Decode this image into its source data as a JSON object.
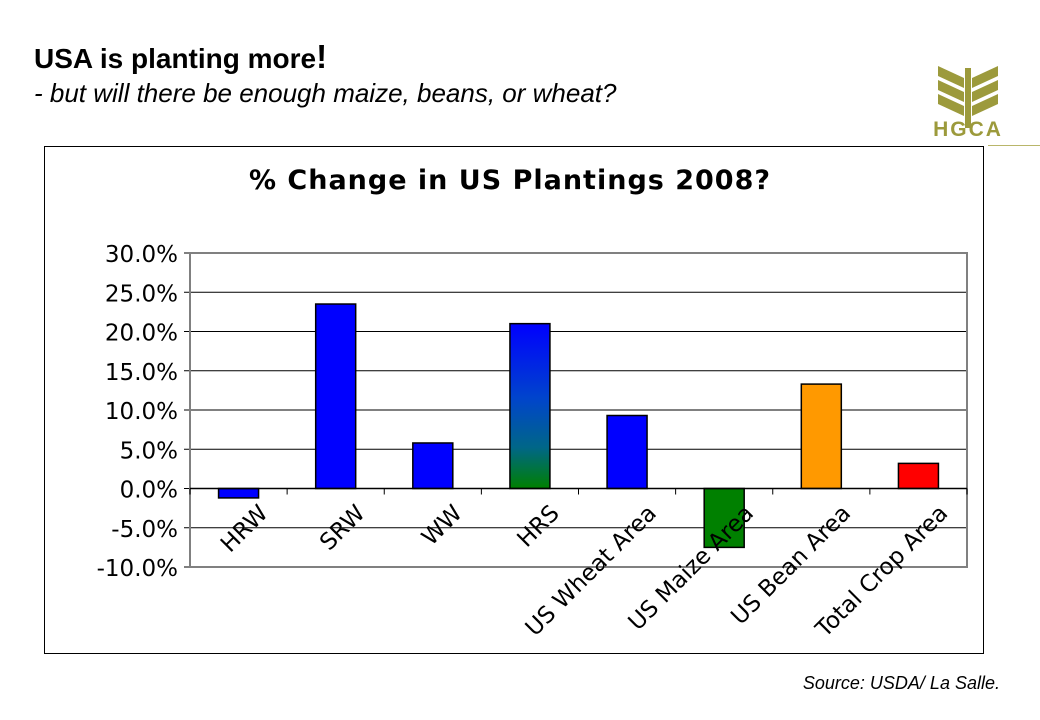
{
  "header": {
    "title": "USA is planting more",
    "title_mark": "!",
    "subtitle": "- but will there be enough maize, beans, or wheat?"
  },
  "logo": {
    "text": "HGCA",
    "color": "#9c9a3c"
  },
  "chart_data": {
    "type": "bar",
    "title": "%  Change in US Plantings 2008?",
    "xlabel": "",
    "ylabel": "",
    "ylim": [
      -10,
      30
    ],
    "yticks": [
      "30.0%",
      "25.0%",
      "20.0%",
      "15.0%",
      "10.0%",
      "5.0%",
      "0.0%",
      "-5.0%",
      "-10.0%"
    ],
    "ytick_values": [
      30,
      25,
      20,
      15,
      10,
      5,
      0,
      -5,
      -10
    ],
    "grid": true,
    "legend": "none",
    "categories": [
      "HRW",
      "SRW",
      "WW",
      "HRS",
      "US Wheat Area",
      "US Maize Area",
      "US Bean Area",
      "Total Crop Area"
    ],
    "values": [
      -1.2,
      23.5,
      5.8,
      21.0,
      9.3,
      -7.5,
      13.3,
      3.2
    ],
    "colors": [
      "#0000ff",
      "#0000ff",
      "#0000ff",
      "gradient-blue-green",
      "#0000ff",
      "#008000",
      "#ff9900",
      "#ff0000"
    ]
  },
  "footer": {
    "source": "Source: USDA/ La Salle."
  }
}
